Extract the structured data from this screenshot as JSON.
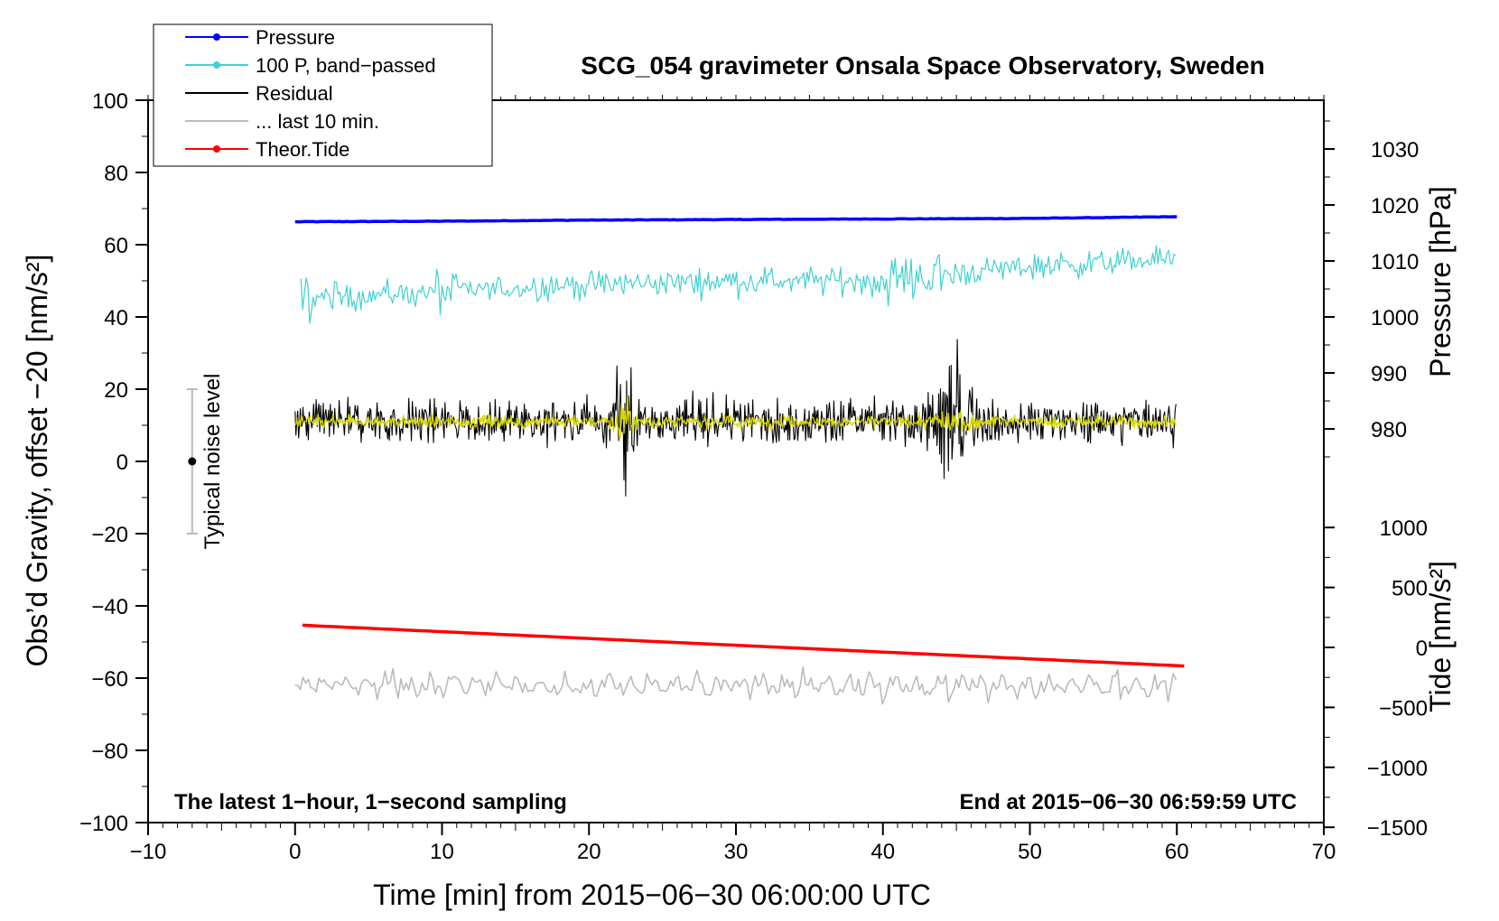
{
  "chart_data": {
    "type": "line",
    "title": "SCG_054 gravimeter Onsala Space Observatory, Sweden",
    "subtitle_left": "The latest 1−hour, 1−second sampling",
    "subtitle_right": "End at 2015−06−30 06:59:59 UTC",
    "xlabel": "Time [min] from 2015−06−30 06:00:00 UTC",
    "ylabel_left": "Obs’d Gravity, offset −20 [nm/s²]",
    "ylabel_right_pressure": "Pressure [hPa]",
    "ylabel_right_tide": "Tide [nm/s²]",
    "xlim": [
      -10,
      70
    ],
    "ylim_left": [
      -100,
      100
    ],
    "x_ticks": [
      -10,
      0,
      10,
      20,
      30,
      40,
      50,
      60,
      70
    ],
    "x_tick_labels": [
      "−10",
      "0",
      "10",
      "20",
      "30",
      "40",
      "50",
      "60",
      "70"
    ],
    "y_ticks_left": [
      -100,
      -80,
      -60,
      -40,
      -20,
      0,
      20,
      40,
      60,
      80,
      100
    ],
    "y_tick_labels_left": [
      "−100",
      "−80",
      "−60",
      "−40",
      "−20",
      "0",
      "20",
      "40",
      "60",
      "80",
      "100"
    ],
    "pressure_axis": {
      "ticks": [
        980,
        990,
        1000,
        1010,
        1020,
        1030
      ],
      "tick_labels": [
        "980",
        "990",
        "1000",
        "1010",
        "1020",
        "1030"
      ],
      "map_left_value_at_1000": 40,
      "left_units_per_hPa": 1.55
    },
    "tide_axis": {
      "ticks": [
        -1500,
        -1000,
        -500,
        0,
        500,
        1000
      ],
      "tick_labels": [
        "−1500",
        "−1000",
        "−500",
        "0",
        "500",
        "1000"
      ],
      "map_left_value_at_0": -51.5,
      "left_units_per_1000": 33.2
    },
    "noise_indicator": {
      "label": "Typical noise level",
      "x": -7,
      "center": 0,
      "range": [
        -20,
        20
      ]
    },
    "series": [
      {
        "name": "Pressure",
        "color": "#0000ff",
        "unit": "hPa",
        "x": [
          0,
          10,
          20,
          30,
          40,
          50,
          60
        ],
        "values": [
          1017.0,
          1017.1,
          1017.3,
          1017.4,
          1017.5,
          1017.6,
          1017.9
        ]
      },
      {
        "name": "100 P, band−passed",
        "color": "#40d0d0",
        "x": [
          0,
          10,
          20,
          30,
          40,
          50,
          60
        ],
        "values": [
          45,
          47,
          49,
          50,
          50,
          54,
          56
        ]
      },
      {
        "name": "Residual",
        "color": "#000000",
        "x": [
          0,
          10,
          20,
          22.3,
          30,
          40,
          44.5,
          50,
          60
        ],
        "values": [
          11,
          11,
          11,
          11,
          11,
          11,
          11,
          11,
          11
        ]
      },
      {
        "name": "... last 10 min.",
        "color": "#bbbbbb",
        "x": [
          0,
          10,
          20,
          30,
          40,
          50,
          60
        ],
        "values": [
          -62,
          -62,
          -62,
          -62,
          -62,
          -62,
          -62
        ]
      },
      {
        "name": "Theor.Tide",
        "color": "#ff0000",
        "unit": "nm/s²",
        "x": [
          0.5,
          60.5
        ],
        "values": [
          185,
          -155
        ]
      }
    ],
    "legend": {
      "placement": "top-left",
      "entries": [
        {
          "label": "Pressure",
          "color": "#0000ff",
          "marker": true
        },
        {
          "label": "100 P, band−passed",
          "color": "#40d0d0",
          "marker": true
        },
        {
          "label": "Residual",
          "color": "#000000",
          "marker": false
        },
        {
          "label": "... last 10 min.",
          "color": "#bbbbbb",
          "marker": false
        },
        {
          "label": "Theor.Tide",
          "color": "#ff0000",
          "marker": true
        }
      ]
    },
    "overlay_color": "#d8d800"
  }
}
